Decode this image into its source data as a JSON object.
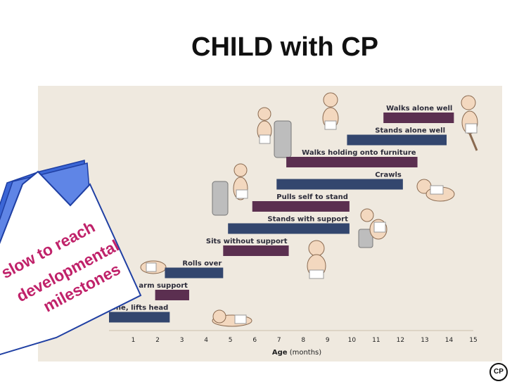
{
  "title": "CHILD with CP",
  "callout": {
    "lines": [
      "slow to reach",
      "developmental",
      "milestones"
    ],
    "color": "#c0226a"
  },
  "logo_text": "CP",
  "colors": {
    "navy": "#33466e",
    "plum": "#5b2f50",
    "panel": "#efe9df"
  },
  "chart_data": {
    "type": "bar",
    "orientation": "horizontal",
    "title": "",
    "xlabel": "Age",
    "xlabel_unit": "(months)",
    "xlim": [
      0,
      15
    ],
    "x_ticks": [
      1,
      2,
      3,
      4,
      5,
      6,
      7,
      8,
      9,
      10,
      11,
      12,
      13,
      14,
      15
    ],
    "grid": false,
    "milestones": [
      {
        "label": "Prone, lifts head",
        "start": 0.0,
        "end": 2.5,
        "color": "navy"
      },
      {
        "label": "Prone, lifts chest with arm support",
        "start": 1.9,
        "end": 3.3,
        "color": "plum"
      },
      {
        "label": "Rolls over",
        "start": 2.3,
        "end": 4.7,
        "color": "navy"
      },
      {
        "label": "Sits without support",
        "start": 4.7,
        "end": 7.4,
        "color": "plum"
      },
      {
        "label": "Stands with support",
        "start": 4.9,
        "end": 9.9,
        "color": "navy"
      },
      {
        "label": "Pulls self to stand",
        "start": 5.9,
        "end": 9.9,
        "color": "plum"
      },
      {
        "label": "Crawls",
        "start": 6.9,
        "end": 12.1,
        "color": "navy"
      },
      {
        "label": "Walks holding onto furniture",
        "start": 7.3,
        "end": 12.7,
        "color": "plum"
      },
      {
        "label": "Stands alone well",
        "start": 9.8,
        "end": 13.9,
        "color": "navy"
      },
      {
        "label": "Walks alone well",
        "start": 11.3,
        "end": 14.2,
        "color": "plum"
      }
    ]
  }
}
